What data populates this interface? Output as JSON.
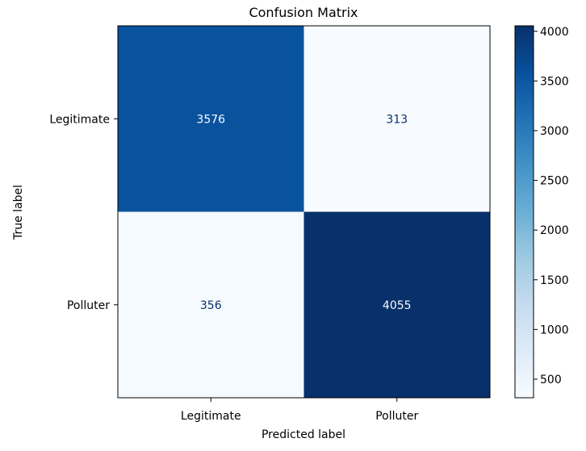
{
  "chart_data": {
    "type": "heatmap",
    "title": "Confusion Matrix",
    "xlabel": "Predicted label",
    "ylabel": "True label",
    "x_categories": [
      "Legitimate",
      "Polluter"
    ],
    "y_categories": [
      "Legitimate",
      "Polluter"
    ],
    "matrix": [
      [
        3576,
        313
      ],
      [
        356,
        4055
      ]
    ],
    "colormap": "Blues",
    "color_range": [
      313,
      4055
    ],
    "colorbar_ticks": [
      500,
      1000,
      1500,
      2000,
      2500,
      3000,
      3500,
      4000
    ],
    "grid": false
  }
}
